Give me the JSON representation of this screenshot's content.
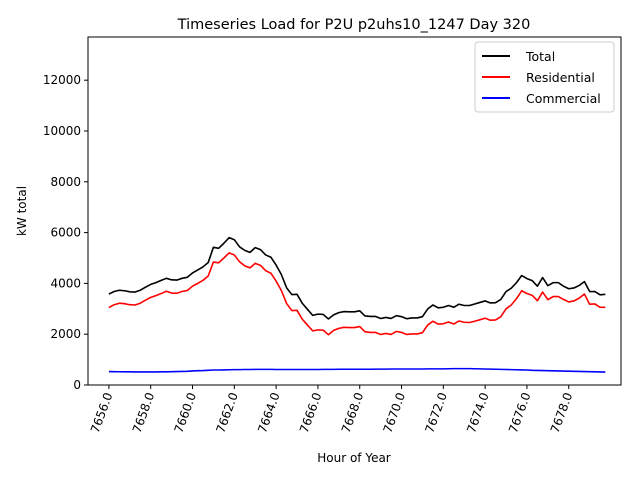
{
  "chart_data": {
    "type": "line",
    "title": "Timeseries Load for P2U p2uhs10_1247  Day 320",
    "xlabel": "Hour of Year",
    "ylabel": "kW total",
    "xlim": [
      7655.0,
      7680.5
    ],
    "ylim": [
      0,
      13700
    ],
    "x_ticks": [
      7656,
      7658,
      7660,
      7662,
      7664,
      7666,
      7668,
      7670,
      7672,
      7674,
      7676,
      7678
    ],
    "x_tick_labels": [
      "7656.0",
      "7658.0",
      "7660.0",
      "7662.0",
      "7664.0",
      "7666.0",
      "7668.0",
      "7670.0",
      "7672.0",
      "7674.0",
      "7676.0",
      "7678.0"
    ],
    "y_ticks": [
      0,
      2000,
      4000,
      6000,
      8000,
      10000,
      12000
    ],
    "y_tick_labels": [
      "0",
      "2000",
      "4000",
      "6000",
      "8000",
      "10000",
      "12000"
    ],
    "grid": false,
    "legend_position": "top-right",
    "x": [
      7656.0,
      7656.25,
      7656.5,
      7656.75,
      7657.0,
      7657.25,
      7657.5,
      7657.75,
      7658.0,
      7658.25,
      7658.5,
      7658.75,
      7659.0,
      7659.25,
      7659.5,
      7659.75,
      7660.0,
      7660.25,
      7660.5,
      7660.75,
      7661.0,
      7661.25,
      7661.5,
      7661.75,
      7662.0,
      7662.25,
      7662.5,
      7662.75,
      7663.0,
      7663.25,
      7663.5,
      7663.75,
      7664.0,
      7664.25,
      7664.5,
      7664.75,
      7665.0,
      7665.25,
      7665.5,
      7665.75,
      7666.0,
      7666.25,
      7666.5,
      7666.75,
      7667.0,
      7667.25,
      7667.5,
      7667.75,
      7668.0,
      7668.25,
      7668.5,
      7668.75,
      7669.0,
      7669.25,
      7669.5,
      7669.75,
      7670.0,
      7670.25,
      7670.5,
      7670.75,
      7671.0,
      7671.25,
      7671.5,
      7671.75,
      7672.0,
      7672.25,
      7672.5,
      7672.75,
      7673.0,
      7673.25,
      7673.5,
      7673.75,
      7674.0,
      7674.25,
      7674.5,
      7674.75,
      7675.0,
      7675.25,
      7675.5,
      7675.75,
      7676.0,
      7676.25,
      7676.5,
      7676.75,
      7677.0,
      7677.25,
      7677.5,
      7677.75,
      7678.0,
      7678.25,
      7678.5,
      7678.75,
      7679.0,
      7679.25,
      7679.5,
      7679.75
    ],
    "series": [
      {
        "name": "Total",
        "color": "#000000",
        "values": [
          3580,
          3680,
          3730,
          3710,
          3670,
          3660,
          3730,
          3850,
          3960,
          4030,
          4120,
          4200,
          4140,
          4130,
          4200,
          4240,
          4410,
          4530,
          4650,
          4820,
          5420,
          5380,
          5580,
          5800,
          5720,
          5440,
          5300,
          5220,
          5410,
          5330,
          5120,
          5030,
          4720,
          4350,
          3830,
          3560,
          3570,
          3220,
          2980,
          2740,
          2790,
          2780,
          2600,
          2760,
          2850,
          2890,
          2880,
          2880,
          2920,
          2720,
          2700,
          2700,
          2620,
          2660,
          2620,
          2730,
          2690,
          2610,
          2640,
          2640,
          2690,
          2990,
          3150,
          3040,
          3060,
          3130,
          3060,
          3180,
          3130,
          3130,
          3190,
          3250,
          3310,
          3230,
          3240,
          3370,
          3680,
          3810,
          4030,
          4310,
          4190,
          4110,
          3890,
          4230,
          3910,
          4030,
          4030,
          3890,
          3790,
          3820,
          3920,
          4070,
          3680,
          3680,
          3550,
          3570
        ]
      },
      {
        "name": "Residential",
        "color": "#ff0000",
        "values": [
          3050,
          3160,
          3220,
          3200,
          3160,
          3150,
          3220,
          3340,
          3450,
          3520,
          3600,
          3690,
          3620,
          3610,
          3680,
          3720,
          3890,
          4000,
          4120,
          4290,
          4840,
          4810,
          5000,
          5200,
          5120,
          4850,
          4690,
          4610,
          4790,
          4710,
          4500,
          4400,
          4090,
          3720,
          3210,
          2930,
          2940,
          2590,
          2360,
          2130,
          2170,
          2160,
          1980,
          2150,
          2230,
          2270,
          2260,
          2260,
          2300,
          2100,
          2070,
          2070,
          1990,
          2030,
          1990,
          2110,
          2070,
          1990,
          2010,
          2010,
          2060,
          2360,
          2510,
          2400,
          2410,
          2480,
          2400,
          2520,
          2470,
          2460,
          2510,
          2570,
          2630,
          2550,
          2560,
          2690,
          3000,
          3150,
          3400,
          3710,
          3600,
          3530,
          3320,
          3660,
          3360,
          3480,
          3480,
          3370,
          3270,
          3310,
          3420,
          3580,
          3180,
          3190,
          3060,
          3060
        ]
      },
      {
        "name": "Commercial",
        "color": "#0000ff",
        "values": [
          530,
          525,
          522,
          520,
          518,
          515,
          515,
          515,
          515,
          515,
          520,
          520,
          525,
          530,
          535,
          540,
          555,
          565,
          570,
          580,
          590,
          590,
          595,
          600,
          605,
          605,
          610,
          610,
          615,
          615,
          615,
          615,
          610,
          610,
          610,
          610,
          610,
          610,
          610,
          610,
          610,
          615,
          615,
          615,
          620,
          620,
          620,
          620,
          620,
          620,
          620,
          625,
          625,
          625,
          630,
          630,
          630,
          630,
          630,
          630,
          630,
          635,
          635,
          635,
          635,
          640,
          645,
          645,
          645,
          645,
          640,
          635,
          630,
          625,
          620,
          615,
          610,
          605,
          600,
          595,
          590,
          580,
          575,
          570,
          565,
          560,
          555,
          550,
          545,
          540,
          535,
          530,
          525,
          520,
          515,
          510
        ]
      }
    ]
  }
}
